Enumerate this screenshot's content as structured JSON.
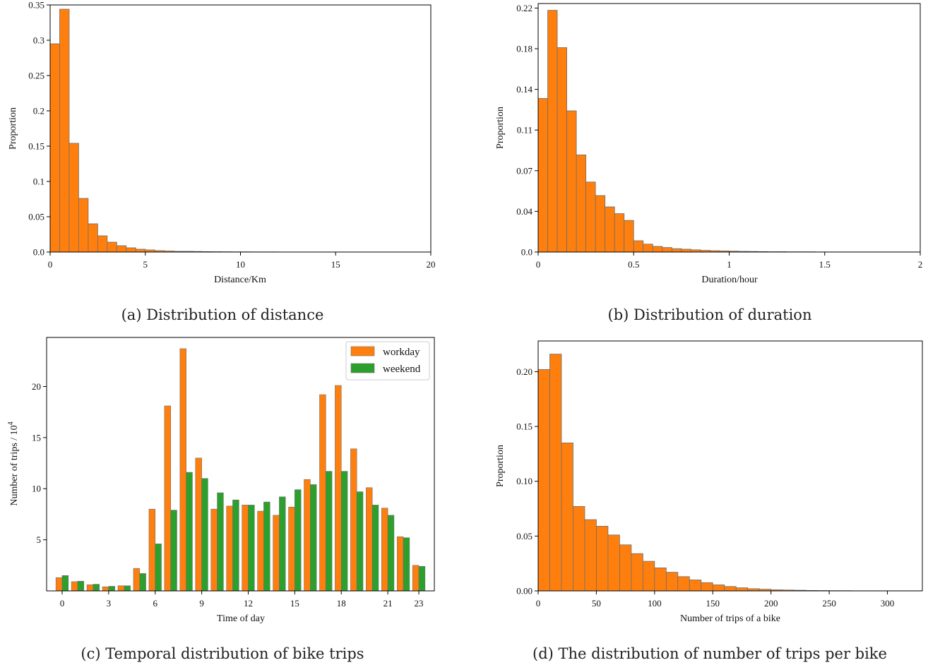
{
  "colors": {
    "workday": "#ff7f0e",
    "weekend": "#2ca02c",
    "bar_edge": "#6e6e6e",
    "axis": "#000000"
  },
  "chart_data": [
    {
      "type": "bar",
      "caption": "(a) Distribution of distance",
      "xlabel": "Distance/Km",
      "ylabel": "Proportion",
      "xlim": [
        0,
        20
      ],
      "ylim": [
        0,
        0.35
      ],
      "xticks": [
        0,
        5,
        10,
        15,
        20
      ],
      "xtick_labels": [
        "0",
        "5",
        "10",
        "15",
        "20"
      ],
      "yticks": [
        0,
        0.05,
        0.1,
        0.15,
        0.2,
        0.25,
        0.3,
        0.35
      ],
      "ytick_labels": [
        "0.0",
        "0.05",
        "0.1",
        "0.15",
        "0.2",
        "0.25",
        "0.3",
        "0.35"
      ],
      "bin_start": 0,
      "bin_width": 0.5,
      "values": [
        0.295,
        0.344,
        0.154,
        0.076,
        0.04,
        0.023,
        0.014,
        0.009,
        0.006,
        0.004,
        0.003,
        0.002,
        0.0015,
        0.001,
        0.001,
        0.0008,
        0.0006,
        0.0005,
        0.0004,
        0.0003,
        0.0003,
        0.0002,
        0.0002,
        0.0002,
        0.0001,
        0.0001,
        0.0001,
        0.0001,
        0.0001,
        0.0001,
        0.0001,
        0.0001,
        0.0001,
        0.0001,
        0.0001,
        0.0001,
        0.0001,
        0.0001,
        0.0001,
        0.0001
      ]
    },
    {
      "type": "bar",
      "caption": "(b) Distribution of duration",
      "xlabel": "Duration/hour",
      "ylabel": "Proportion",
      "xlim": [
        0,
        2
      ],
      "ylim": [
        0,
        0.22
      ],
      "xticks": [
        0,
        0.5,
        1,
        1.5,
        2
      ],
      "xtick_labels": [
        "0",
        "0.5",
        "1",
        "1.5",
        "2"
      ],
      "yticks": [
        0,
        0.036,
        0.072,
        0.108,
        0.144,
        0.18,
        0.216
      ],
      "ytick_labels": [
        "0.0",
        "0.04",
        "0.07",
        "0.11",
        "0.14",
        "0.18",
        "0.22"
      ],
      "bin_start": 0,
      "bin_width": 0.05,
      "values": [
        0.136,
        0.214,
        0.181,
        0.125,
        0.086,
        0.062,
        0.05,
        0.04,
        0.034,
        0.028,
        0.01,
        0.007,
        0.005,
        0.004,
        0.003,
        0.0025,
        0.002,
        0.0015,
        0.0012,
        0.001,
        0.0008,
        0.0006,
        0.0005,
        0.0004,
        0.0003,
        0.0003,
        0.0002,
        0.0002,
        0.0002,
        0.0001,
        0.0001,
        0.0001,
        0.0001,
        0.0001,
        0.0001,
        0.0001,
        0.0001,
        0.0001,
        0.0001,
        0.0001
      ]
    },
    {
      "type": "bar",
      "caption": "(c) Temporal distribution of bike trips",
      "xlabel": "Time of day",
      "ylabel": "Number of trips / 10",
      "ylabel_sup": "4",
      "xlim": [
        -1,
        24
      ],
      "ylim": [
        0,
        24.8
      ],
      "xticks": [
        0,
        3,
        6,
        9,
        12,
        15,
        18,
        21,
        23
      ],
      "xtick_labels": [
        "0",
        "3",
        "6",
        "9",
        "12",
        "15",
        "18",
        "21",
        "23"
      ],
      "yticks": [
        5,
        10,
        15,
        20
      ],
      "ytick_labels": [
        "5",
        "10",
        "15",
        "20"
      ],
      "legend_position": "top-right",
      "categories": [
        0,
        1,
        2,
        3,
        4,
        5,
        6,
        7,
        8,
        9,
        10,
        11,
        12,
        13,
        14,
        15,
        16,
        17,
        18,
        19,
        20,
        21,
        22,
        23
      ],
      "series": [
        {
          "name": "workday",
          "values": [
            1.3,
            0.9,
            0.6,
            0.4,
            0.5,
            2.2,
            8.0,
            18.1,
            23.7,
            13.0,
            8.0,
            8.3,
            8.4,
            7.8,
            7.4,
            8.2,
            10.9,
            19.2,
            20.1,
            13.9,
            10.1,
            8.1,
            5.3,
            2.5
          ]
        },
        {
          "name": "weekend",
          "values": [
            1.5,
            0.95,
            0.65,
            0.45,
            0.5,
            1.7,
            4.6,
            7.9,
            11.6,
            11.0,
            9.6,
            8.9,
            8.4,
            8.7,
            9.2,
            9.9,
            10.4,
            11.7,
            11.7,
            9.7,
            8.4,
            7.4,
            5.2,
            2.4
          ]
        }
      ]
    },
    {
      "type": "bar",
      "caption": "(d) The distribution of number of trips per bike",
      "xlabel": "Number of trips of a bike",
      "ylabel": "Proportion",
      "xlim": [
        0,
        330
      ],
      "ylim": [
        0,
        0.228
      ],
      "xticks": [
        0,
        50,
        100,
        150,
        200,
        250,
        300
      ],
      "xtick_labels": [
        "0",
        "50",
        "100",
        "150",
        "200",
        "250",
        "300"
      ],
      "yticks": [
        0,
        0.05,
        0.1,
        0.15,
        0.2
      ],
      "ytick_labels": [
        "0.00",
        "0.05",
        "0.10",
        "0.15",
        "0.20"
      ],
      "bin_start": 0,
      "bin_width": 10,
      "values": [
        0.202,
        0.216,
        0.135,
        0.077,
        0.065,
        0.059,
        0.051,
        0.042,
        0.034,
        0.027,
        0.021,
        0.017,
        0.013,
        0.01,
        0.0075,
        0.0055,
        0.004,
        0.0028,
        0.002,
        0.0015,
        0.001,
        0.0008,
        0.0006,
        0.0004,
        0.0003,
        0.0002,
        0.0002,
        0.0001,
        0.0001,
        0.0001,
        0.0001,
        0.0001,
        0.0001
      ]
    }
  ]
}
